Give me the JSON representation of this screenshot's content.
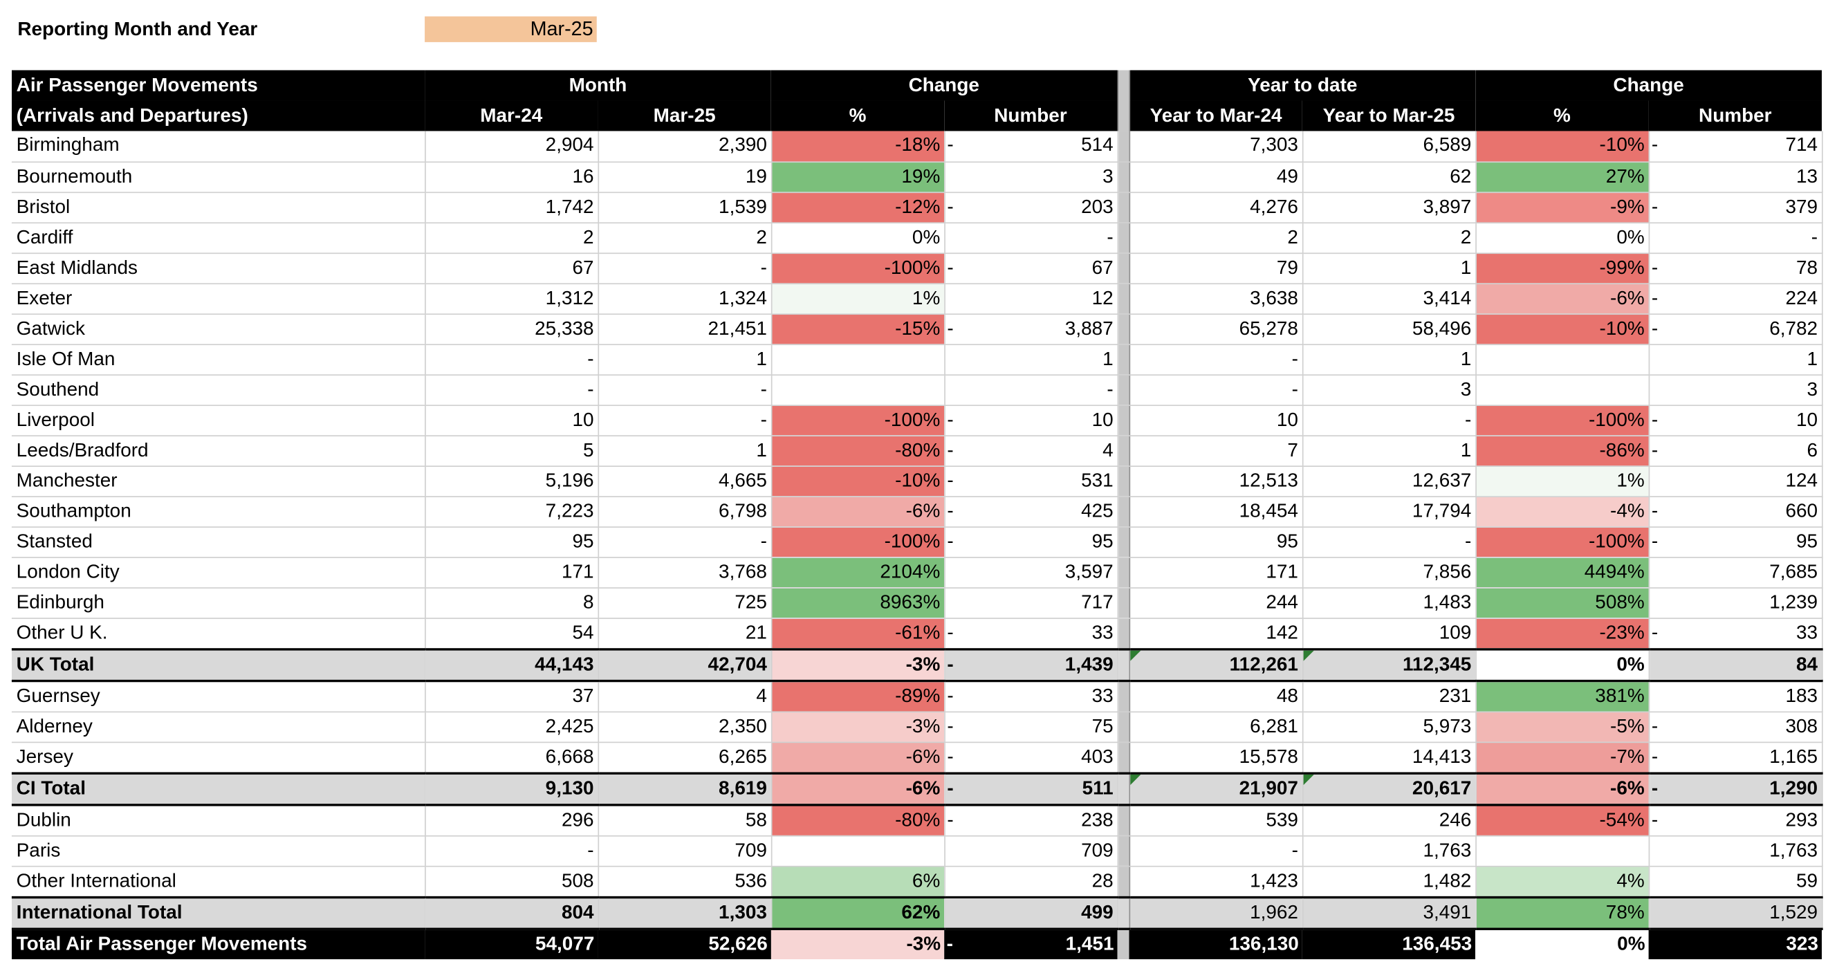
{
  "report": {
    "label": "Reporting Month and Year",
    "value": "Mar-25"
  },
  "table": {
    "header1": [
      "Air Passenger Movements",
      "Month",
      "Change",
      "Year to date",
      "Change"
    ],
    "header2": [
      "(Arrivals and Departures)",
      "Mar-24",
      "Mar-25",
      "%",
      "Number",
      "Year to Mar-24",
      "Year to Mar-25",
      "%",
      "Number"
    ],
    "rows": [
      {
        "name": "Birmingham",
        "type": "row",
        "m24": "2,904",
        "m25": "2,390",
        "mp": "-18%",
        "mpc": "#E8736E",
        "mneg": true,
        "mn": "514",
        "y24": "7,303",
        "y25": "6,589",
        "yp": "-10%",
        "ypc": "#E8736E",
        "yneg": true,
        "yn": "714"
      },
      {
        "name": "Bournemouth",
        "type": "row",
        "m24": "16",
        "m25": "19",
        "mp": "19%",
        "mpc": "#7BBF7B",
        "mneg": false,
        "mn": "3",
        "y24": "49",
        "y25": "62",
        "yp": "27%",
        "ypc": "#7BBF7B",
        "yneg": false,
        "yn": "13"
      },
      {
        "name": "Bristol",
        "type": "row",
        "m24": "1,742",
        "m25": "1,539",
        "mp": "-12%",
        "mpc": "#E8736E",
        "mneg": true,
        "mn": "203",
        "y24": "4,276",
        "y25": "3,897",
        "yp": "-9%",
        "ypc": "#EE8A86",
        "yneg": true,
        "yn": "379"
      },
      {
        "name": "Cardiff",
        "type": "row",
        "m24": "2",
        "m25": "2",
        "mp": "0%",
        "mpc": "#FFFFFF",
        "mneg": false,
        "mn": "-",
        "y24": "2",
        "y25": "2",
        "yp": "0%",
        "ypc": "#FFFFFF",
        "yneg": false,
        "yn": "-"
      },
      {
        "name": "East Midlands",
        "type": "row",
        "m24": "67",
        "m25": "-",
        "mp": "-100%",
        "mpc": "#E8736E",
        "mneg": true,
        "mn": "67",
        "y24": "79",
        "y25": "1",
        "yp": "-99%",
        "ypc": "#E8736E",
        "yneg": true,
        "yn": "78"
      },
      {
        "name": "Exeter",
        "type": "row",
        "m24": "1,312",
        "m25": "1,324",
        "mp": "1%",
        "mpc": "#F2F8F2",
        "mneg": false,
        "mn": "12",
        "y24": "3,638",
        "y25": "3,414",
        "yp": "-6%",
        "ypc": "#F0AAA7",
        "yneg": true,
        "yn": "224"
      },
      {
        "name": "Gatwick",
        "type": "row",
        "m24": "25,338",
        "m25": "21,451",
        "mp": "-15%",
        "mpc": "#E8736E",
        "mneg": true,
        "mn": "3,887",
        "y24": "65,278",
        "y25": "58,496",
        "yp": "-10%",
        "ypc": "#E8736E",
        "yneg": true,
        "yn": "6,782"
      },
      {
        "name": "Isle Of Man",
        "type": "row",
        "m24": "-",
        "m25": "1",
        "mp": "",
        "mpc": "#FFFFFF",
        "mneg": false,
        "mn": "1",
        "y24": "-",
        "y25": "1",
        "yp": "",
        "ypc": "#FFFFFF",
        "yneg": false,
        "yn": "1"
      },
      {
        "name": "Southend",
        "type": "row",
        "m24": "-",
        "m25": "-",
        "mp": "",
        "mpc": "#FFFFFF",
        "mneg": false,
        "mn": "-",
        "y24": "-",
        "y25": "3",
        "yp": "",
        "ypc": "#FFFFFF",
        "yneg": false,
        "yn": "3"
      },
      {
        "name": "Liverpool",
        "type": "row",
        "m24": "10",
        "m25": "-",
        "mp": "-100%",
        "mpc": "#E8736E",
        "mneg": true,
        "mn": "10",
        "y24": "10",
        "y25": "-",
        "yp": "-100%",
        "ypc": "#E8736E",
        "yneg": true,
        "yn": "10"
      },
      {
        "name": "Leeds/Bradford",
        "type": "row",
        "m24": "5",
        "m25": "1",
        "mp": "-80%",
        "mpc": "#E8736E",
        "mneg": true,
        "mn": "4",
        "y24": "7",
        "y25": "1",
        "yp": "-86%",
        "ypc": "#E8736E",
        "yneg": true,
        "yn": "6"
      },
      {
        "name": "Manchester",
        "type": "row",
        "m24": "5,196",
        "m25": "4,665",
        "mp": "-10%",
        "mpc": "#E8736E",
        "mneg": true,
        "mn": "531",
        "y24": "12,513",
        "y25": "12,637",
        "yp": "1%",
        "ypc": "#F2F8F2",
        "yneg": false,
        "yn": "124"
      },
      {
        "name": "Southampton",
        "type": "row",
        "m24": "7,223",
        "m25": "6,798",
        "mp": "-6%",
        "mpc": "#F0AAA7",
        "mneg": true,
        "mn": "425",
        "y24": "18,454",
        "y25": "17,794",
        "yp": "-4%",
        "ypc": "#F6CCCA",
        "yneg": true,
        "yn": "660"
      },
      {
        "name": "Stansted",
        "type": "row",
        "m24": "95",
        "m25": "-",
        "mp": "-100%",
        "mpc": "#E8736E",
        "mneg": true,
        "mn": "95",
        "y24": "95",
        "y25": "-",
        "yp": "-100%",
        "ypc": "#E8736E",
        "yneg": true,
        "yn": "95"
      },
      {
        "name": "London City",
        "type": "row",
        "m24": "171",
        "m25": "3,768",
        "mp": "2104%",
        "mpc": "#7BBF7B",
        "mneg": false,
        "mn": "3,597",
        "y24": "171",
        "y25": "7,856",
        "yp": "4494%",
        "ypc": "#7BBF7B",
        "yneg": false,
        "yn": "7,685"
      },
      {
        "name": "Edinburgh",
        "type": "row",
        "m24": "8",
        "m25": "725",
        "mp": "8963%",
        "mpc": "#7BBF7B",
        "mneg": false,
        "mn": "717",
        "y24": "244",
        "y25": "1,483",
        "yp": "508%",
        "ypc": "#7BBF7B",
        "yneg": false,
        "yn": "1,239"
      },
      {
        "name": "Other  U K.",
        "type": "row",
        "m24": "54",
        "m25": "21",
        "mp": "-61%",
        "mpc": "#E8736E",
        "mneg": true,
        "mn": "33",
        "y24": "142",
        "y25": "109",
        "yp": "-23%",
        "ypc": "#E8736E",
        "yneg": true,
        "yn": "33"
      },
      {
        "name": "UK Total",
        "type": "total",
        "m24": "44,143",
        "m25": "42,704",
        "mp": "-3%",
        "mpc": "#F7D5D4",
        "mneg": true,
        "mn": "1,439",
        "y24": "112,261",
        "y25": "112,345",
        "yp": "0%",
        "ypc": "#FFFFFF",
        "yneg": false,
        "yn": "84",
        "tri": true
      },
      {
        "name": "Guernsey",
        "type": "row",
        "m24": "37",
        "m25": "4",
        "mp": "-89%",
        "mpc": "#E8736E",
        "mneg": true,
        "mn": "33",
        "y24": "48",
        "y25": "231",
        "yp": "381%",
        "ypc": "#7BBF7B",
        "yneg": false,
        "yn": "183"
      },
      {
        "name": "Alderney",
        "type": "row",
        "m24": "2,425",
        "m25": "2,350",
        "mp": "-3%",
        "mpc": "#F6CCCA",
        "mneg": true,
        "mn": "75",
        "y24": "6,281",
        "y25": "5,973",
        "yp": "-5%",
        "ypc": "#F2B7B4",
        "yneg": true,
        "yn": "308"
      },
      {
        "name": "Jersey",
        "type": "row",
        "m24": "6,668",
        "m25": "6,265",
        "mp": "-6%",
        "mpc": "#F0AAA7",
        "mneg": true,
        "mn": "403",
        "y24": "15,578",
        "y25": "14,413",
        "yp": "-7%",
        "ypc": "#EE9D9A",
        "yneg": true,
        "yn": "1,165"
      },
      {
        "name": "CI Total",
        "type": "total",
        "m24": "9,130",
        "m25": "8,619",
        "mp": "-6%",
        "mpc": "#F0AAA7",
        "mneg": true,
        "mn": "511",
        "y24": "21,907",
        "y25": "20,617",
        "yp": "-6%",
        "ypc": "#F0AAA7",
        "yneg": true,
        "yn": "1,290",
        "tri": true
      },
      {
        "name": "Dublin",
        "type": "row",
        "m24": "296",
        "m25": "58",
        "mp": "-80%",
        "mpc": "#E8736E",
        "mneg": true,
        "mn": "238",
        "y24": "539",
        "y25": "246",
        "yp": "-54%",
        "ypc": "#E8736E",
        "yneg": true,
        "yn": "293"
      },
      {
        "name": "Paris",
        "type": "row",
        "m24": "-",
        "m25": "709",
        "mp": "",
        "mpc": "#FFFFFF",
        "mneg": false,
        "mn": "709",
        "y24": "-",
        "y25": "1,763",
        "yp": "",
        "ypc": "#FFFFFF",
        "yneg": false,
        "yn": "1,763"
      },
      {
        "name": "Other International",
        "type": "row",
        "m24": "508",
        "m25": "536",
        "mp": "6%",
        "mpc": "#B7DDB7",
        "mneg": false,
        "mn": "28",
        "y24": "1,423",
        "y25": "1,482",
        "yp": "4%",
        "ypc": "#C8E5C8",
        "yneg": false,
        "yn": "59"
      },
      {
        "name": "International Total",
        "type": "total",
        "m24": "804",
        "m25": "1,303",
        "mp": "62%",
        "mpc": "#7BBF7B",
        "mneg": false,
        "mn": "499",
        "y24": "1,962",
        "y25": "3,491",
        "yp": "78%",
        "ypc": "#7BBF7B",
        "yneg": false,
        "yn": "1,529",
        "ybold": false
      },
      {
        "name": "Total Air Passenger Movements",
        "type": "grand",
        "m24": "54,077",
        "m25": "52,626",
        "mp": "-3%",
        "mpc": "#F7D5D4",
        "mneg": true,
        "mn": "1,451",
        "y24": "136,130",
        "y25": "136,453",
        "yp": "0%",
        "ypc": "#FFFFFF",
        "yneg": false,
        "yn": "323"
      }
    ]
  }
}
